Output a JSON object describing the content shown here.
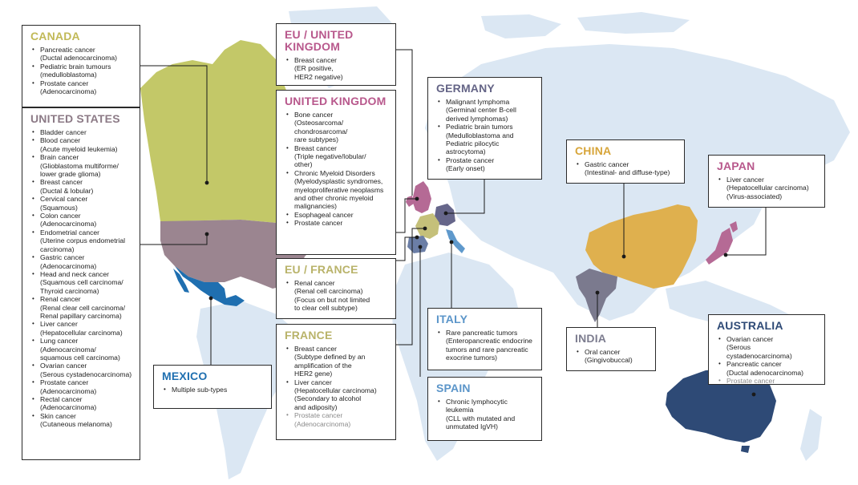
{
  "colors": {
    "canada": "#c3c868",
    "united_states": "#9b8590",
    "mexico": "#1f6fb0",
    "uk": "#b56a95",
    "germany": "#66668a",
    "france": "#c5c07a",
    "italy": "#5f99cc",
    "spain": "#6b7ea6",
    "china": "#dfb04e",
    "india": "#7b7a8e",
    "japan": "#b56a95",
    "australia": "#2e4a76",
    "land": "#dbe7f3",
    "line": "#1a1a1a",
    "title_canada": "#c1b957",
    "title_us": "#8c7a86",
    "title_mexico": "#1f6fb0",
    "title_uk": "#b8588c",
    "title_germany": "#646486",
    "title_france": "#b9b36a",
    "title_italy": "#5b95c9",
    "title_spain": "#5b95c9",
    "title_china": "#d7a53a",
    "title_india": "#7d7d8f",
    "title_japan": "#b8588c",
    "title_australia": "#2e4a76"
  },
  "regions": {
    "canada": {
      "title": "CANADA",
      "items": [
        {
          "text": "Pancreatic cancer",
          "sub": [
            "(Ductal adenocarcinoma)"
          ]
        },
        {
          "text": "Pediatric brain tumours",
          "sub": [
            "(medulloblastoma)"
          ]
        },
        {
          "text": "Prostate cancer",
          "sub": [
            "(Adenocarcinoma)"
          ]
        }
      ]
    },
    "united_states": {
      "title": "UNITED STATES",
      "items": [
        {
          "text": "Bladder cancer",
          "sub": []
        },
        {
          "text": "Blood cancer",
          "sub": [
            "(Acute myeloid leukemia)"
          ]
        },
        {
          "text": "Brain cancer",
          "sub": [
            "(Glioblastoma multiforme/",
            "lower grade glioma)"
          ]
        },
        {
          "text": "Breast cancer",
          "sub": [
            "(Ductal & lobular)"
          ]
        },
        {
          "text": "Cervical cancer",
          "sub": [
            "(Squamous)"
          ]
        },
        {
          "text": "Colon cancer",
          "sub": [
            "(Adenocarcinoma)"
          ]
        },
        {
          "text": "Endometrial cancer",
          "sub": [
            "(Uterine corpus endometrial",
            "carcinoma)"
          ]
        },
        {
          "text": "Gastric cancer",
          "sub": [
            "(Adenocarcinoma)"
          ]
        },
        {
          "text": "Head and neck cancer",
          "sub": [
            "(Squamous cell carcinoma/",
            "Thyroid carcinoma)"
          ]
        },
        {
          "text": "Renal cancer",
          "sub": [
            "(Renal clear cell carcinoma/",
            "Renal papillary carcinoma)"
          ]
        },
        {
          "text": "Liver cancer",
          "sub": [
            "(Hepatocellular carcinoma)"
          ]
        },
        {
          "text": "Lung cancer",
          "sub": [
            "(Adenocarcinoma/",
            "squamous cell carcinoma)"
          ]
        },
        {
          "text": "Ovarian cancer",
          "sub": [
            "(Serous cystadenocarcinoma)"
          ]
        },
        {
          "text": "Prostate cancer",
          "sub": [
            "(Adenocarcinoma)"
          ]
        },
        {
          "text": "Rectal cancer",
          "sub": [
            "(Adenocarcinoma)"
          ]
        },
        {
          "text": "Skin cancer",
          "sub": [
            "(Cutaneous melanoma)"
          ]
        }
      ]
    },
    "mexico": {
      "title": "MEXICO",
      "items": [
        {
          "text": "Multiple sub-types",
          "sub": []
        }
      ]
    },
    "eu_uk": {
      "title": "EU / UNITED KINGDOM",
      "items": [
        {
          "text": "Breast cancer",
          "sub": [
            "(ER positive,",
            "HER2 negative)"
          ]
        }
      ]
    },
    "uk": {
      "title": "UNITED KINGDOM",
      "items": [
        {
          "text": "Bone cancer",
          "sub": [
            "(Osteosarcoma/",
            "chondrosarcoma/",
            "rare subtypes)"
          ]
        },
        {
          "text": "Breast cancer",
          "sub": [
            "(Triple negative/lobular/",
            "other)"
          ]
        },
        {
          "text": "Chronic Myeloid Disorders",
          "sub": [
            "(Myelodysplastic syndromes,",
            "myeloproliferative neoplasms",
            "and other chronic myeloid",
            "malignancies)"
          ]
        },
        {
          "text": "Esophageal cancer",
          "sub": []
        },
        {
          "text": "Prostate cancer",
          "sub": []
        }
      ]
    },
    "eu_france": {
      "title": "EU / FRANCE",
      "items": [
        {
          "text": "Renal cancer",
          "sub": [
            "(Renal cell carcinoma)",
            "(Focus on but not limited",
            "to clear cell subtype)"
          ]
        }
      ]
    },
    "france": {
      "title": "FRANCE",
      "items": [
        {
          "text": "Breast cancer",
          "sub": [
            "(Subtype defined by an",
            "amplification of the",
            "HER2 gene)"
          ]
        },
        {
          "text": "Liver cancer",
          "sub": [
            "(Hepatocellular carcinoma)",
            "(Secondary to alcohol",
            "and adiposity)"
          ]
        },
        {
          "text": "Prostate cancer",
          "sub": [
            "(Adenocarcinoma)"
          ],
          "muted": true
        }
      ]
    },
    "germany": {
      "title": "GERMANY",
      "items": [
        {
          "text": "Malignant lymphoma",
          "sub": [
            "(Germinal center B-cell",
            "derived lymphomas)"
          ]
        },
        {
          "text": "Pediatric brain tumors",
          "sub": [
            "(Medulloblastoma and",
            "Pediatric pilocytic",
            "astrocytoma)"
          ]
        },
        {
          "text": "Prostate cancer",
          "sub": [
            "(Early onset)"
          ]
        }
      ]
    },
    "italy": {
      "title": "ITALY",
      "items": [
        {
          "text": "Rare pancreatic tumors",
          "sub": [
            "(Enteropancreatic endocrine",
            "tumors and rare pancreatic",
            "exocrine tumors)"
          ]
        }
      ]
    },
    "spain": {
      "title": "SPAIN",
      "items": [
        {
          "text": "Chronic lymphocytic",
          "sub": [
            "leukemia",
            "(CLL with mutated and",
            "unmutated IgVH)"
          ]
        }
      ]
    },
    "china": {
      "title": "CHINA",
      "items": [
        {
          "text": "Gastric cancer",
          "sub": [
            "(Intestinal- and diffuse-type)"
          ]
        }
      ]
    },
    "japan": {
      "title": "JAPAN",
      "items": [
        {
          "text": "Liver cancer",
          "sub": [
            "(Hepatocellular carcinoma)",
            "(Virus-associated)"
          ]
        }
      ]
    },
    "india": {
      "title": "INDIA",
      "items": [
        {
          "text": "Oral cancer",
          "sub": [
            "(Gingivobuccal)"
          ]
        }
      ]
    },
    "australia": {
      "title": "AUSTRALIA",
      "items": [
        {
          "text": "Ovarian cancer",
          "sub": [
            "(Serous cystadenocarcinoma)"
          ]
        },
        {
          "text": "Pancreatic cancer",
          "sub": [
            "(Ductal adenocarcinoma)"
          ]
        },
        {
          "text": "Prostate cancer",
          "sub": [],
          "muted": true
        }
      ]
    }
  }
}
